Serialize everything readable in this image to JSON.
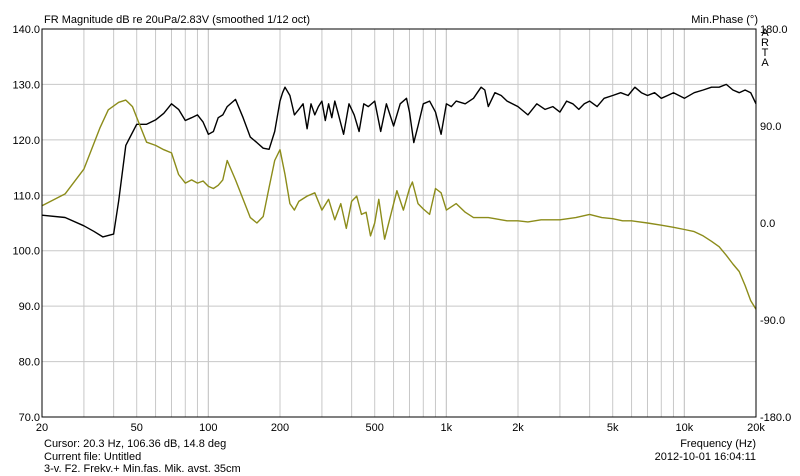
{
  "chart_data": {
    "type": "line",
    "title": "FR Magnitude dB re 20uPa/2.83V (smoothed 1/12 oct)",
    "right_axis_title": "Min.Phase (°)",
    "xlabel": "Frequency (Hz)",
    "x_scale": "log",
    "xlim": [
      20,
      20000
    ],
    "ylim": [
      70,
      140
    ],
    "y2lim": [
      -180,
      180
    ],
    "grid": true,
    "x_ticks": [
      {
        "value": 20,
        "label": "20"
      },
      {
        "value": 50,
        "label": "50"
      },
      {
        "value": 100,
        "label": "100"
      },
      {
        "value": 200,
        "label": "200"
      },
      {
        "value": 500,
        "label": "500"
      },
      {
        "value": 1000,
        "label": "1k"
      },
      {
        "value": 2000,
        "label": "2k"
      },
      {
        "value": 5000,
        "label": "5k"
      },
      {
        "value": 10000,
        "label": "10k"
      },
      {
        "value": 20000,
        "label": "20k"
      }
    ],
    "y_ticks": [
      {
        "value": 140,
        "label": "140.0"
      },
      {
        "value": 130,
        "label": "130.0"
      },
      {
        "value": 120,
        "label": "120.0"
      },
      {
        "value": 110,
        "label": "110.0"
      },
      {
        "value": 100,
        "label": "100.0"
      },
      {
        "value": 90,
        "label": "90.0"
      },
      {
        "value": 80,
        "label": "80.0"
      },
      {
        "value": 70,
        "label": "70.0"
      }
    ],
    "y2_ticks": [
      {
        "value": 180,
        "label": "180.0"
      },
      {
        "value": 90,
        "label": "90.0"
      },
      {
        "value": 0,
        "label": "0.0"
      },
      {
        "value": -90,
        "label": "-90.0"
      },
      {
        "value": -180,
        "label": "-180.0"
      }
    ],
    "series": [
      {
        "axis": "left",
        "color": "#000000",
        "x": [
          20,
          25,
          30,
          33,
          36,
          40,
          42,
          45,
          50,
          55,
          60,
          65,
          70,
          75,
          80,
          85,
          90,
          95,
          100,
          105,
          110,
          115,
          120,
          130,
          140,
          150,
          160,
          170,
          180,
          190,
          200,
          205,
          210,
          220,
          230,
          240,
          250,
          260,
          270,
          280,
          290,
          300,
          310,
          320,
          330,
          340,
          350,
          370,
          390,
          410,
          430,
          450,
          470,
          500,
          530,
          560,
          600,
          640,
          680,
          700,
          730,
          760,
          800,
          850,
          900,
          950,
          1000,
          1050,
          1100,
          1200,
          1300,
          1400,
          1450,
          1500,
          1600,
          1700,
          1800,
          2000,
          2200,
          2400,
          2600,
          2800,
          3000,
          3200,
          3400,
          3600,
          3800,
          4000,
          4300,
          4600,
          5000,
          5400,
          5800,
          6200,
          6600,
          7000,
          7500,
          8000,
          8500,
          9000,
          10000,
          11000,
          12000,
          13000,
          14000,
          15000,
          16000,
          17000,
          18000,
          19000,
          20000
        ],
        "values": [
          106.4,
          106.0,
          104.5,
          103.5,
          102.5,
          103.0,
          109.0,
          119.0,
          122.8,
          122.8,
          123.6,
          124.8,
          126.5,
          125.5,
          123.5,
          124.0,
          124.5,
          123.2,
          121.0,
          121.5,
          124.0,
          124.5,
          126.0,
          127.3,
          124.0,
          120.5,
          119.5,
          118.5,
          118.3,
          121.5,
          127.0,
          128.5,
          129.5,
          128.0,
          124.5,
          125.5,
          126.5,
          122.0,
          126.5,
          124.5,
          126.0,
          127.0,
          123.5,
          126.5,
          124.0,
          127.0,
          125.0,
          121.0,
          126.5,
          124.5,
          121.5,
          126.5,
          126.0,
          127.0,
          121.5,
          126.5,
          122.5,
          126.5,
          127.5,
          125.0,
          119.5,
          122.5,
          126.5,
          127.0,
          125.0,
          121.0,
          126.5,
          126.0,
          127.0,
          126.5,
          127.5,
          129.5,
          129.0,
          126.0,
          128.5,
          128.0,
          127.0,
          126.0,
          124.5,
          126.5,
          125.5,
          126.0,
          125.0,
          127.0,
          126.5,
          125.5,
          126.5,
          127.0,
          126.0,
          127.5,
          128.0,
          128.5,
          128.0,
          129.5,
          128.5,
          128.0,
          128.5,
          127.5,
          128.0,
          128.5,
          127.5,
          128.5,
          129.0,
          129.5,
          129.5,
          130.0,
          129.0,
          128.5,
          129.0,
          128.5,
          126.5
        ]
      },
      {
        "axis": "right",
        "color": "#8c8c1a",
        "x": [
          20,
          25,
          30,
          35,
          38,
          42,
          45,
          48,
          50,
          55,
          60,
          65,
          70,
          75,
          80,
          85,
          90,
          95,
          100,
          105,
          110,
          115,
          120,
          130,
          140,
          150,
          160,
          170,
          180,
          190,
          200,
          210,
          220,
          230,
          240,
          260,
          280,
          300,
          320,
          340,
          360,
          380,
          400,
          420,
          440,
          460,
          480,
          500,
          520,
          550,
          580,
          620,
          660,
          700,
          720,
          760,
          800,
          850,
          900,
          950,
          1000,
          1100,
          1200,
          1300,
          1400,
          1500,
          1600,
          1700,
          1800,
          2000,
          2200,
          2500,
          2800,
          3000,
          3500,
          4000,
          4500,
          5000,
          5500,
          6000,
          7000,
          8000,
          9000,
          10000,
          11000,
          12000,
          13000,
          14000,
          15000,
          16000,
          17000,
          18000,
          19000,
          20000
        ],
        "values": [
          16,
          27,
          50,
          88,
          105,
          112,
          114,
          108,
          98,
          75,
          72,
          68,
          65,
          45,
          37,
          40,
          37,
          39,
          34,
          32,
          35,
          40,
          58,
          40,
          22,
          5,
          0,
          6,
          33,
          58,
          68,
          45,
          18,
          12,
          20,
          25,
          28,
          12,
          22,
          3,
          18,
          -5,
          20,
          25,
          8,
          10,
          -12,
          0,
          22,
          -15,
          5,
          30,
          12,
          32,
          38,
          18,
          13,
          8,
          32,
          28,
          12,
          18,
          10,
          5,
          5,
          5,
          4,
          3,
          2,
          2,
          1,
          3,
          3,
          3,
          5,
          8,
          5,
          4,
          2,
          2,
          0,
          -2,
          -4,
          -6,
          -8,
          -12,
          -17,
          -22,
          -30,
          -38,
          -45,
          -58,
          -72,
          -80
        ]
      }
    ]
  },
  "status": {
    "cursor": "Cursor: 20.3 Hz, 106.36 dB, 14.8 deg",
    "current_file": "Current file: Untitled",
    "comment": "3-v. F2. Frekv.+ Min.fas. Mik. avst. 35cm",
    "timestamp": "2012-10-01  16:04:11"
  },
  "watermark": "ARTA",
  "colors": {
    "grid": "#c8c8c8",
    "background": "#ffffff"
  }
}
